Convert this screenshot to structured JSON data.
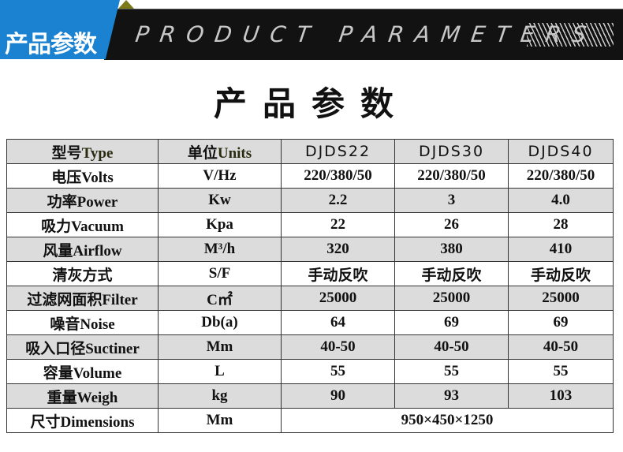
{
  "banner": {
    "cn_title": "产品参数",
    "en_title": "PRODUCT PARAMETERS"
  },
  "title": "产品参数",
  "header": {
    "type_cn": "型号",
    "type_en": "Type",
    "units_cn": "单位",
    "units_en": "Units",
    "models": [
      "DJDS22",
      "DJDS30",
      "DJDS40"
    ]
  },
  "rows": [
    {
      "label": "电压Volts",
      "unit": "V/Hz",
      "values": [
        "220/380/50",
        "220/380/50",
        "220/380/50"
      ]
    },
    {
      "label": "功率Power",
      "unit": "Kw",
      "values": [
        "2.2",
        "3",
        "4.0"
      ]
    },
    {
      "label": "吸力Vacuum",
      "unit": "Kpa",
      "values": [
        "22",
        "26",
        "28"
      ]
    },
    {
      "label": "风量Airflow",
      "unit": "M³/h",
      "values": [
        "320",
        "380",
        "410"
      ]
    },
    {
      "label": "清灰方式",
      "unit": "S/F",
      "values": [
        "手动反吹",
        "手动反吹",
        "手动反吹"
      ]
    },
    {
      "label": "过滤网面积Filter",
      "unit": "C㎡",
      "values": [
        "25000",
        "25000",
        "25000"
      ]
    },
    {
      "label": "噪音Noise",
      "unit": "Db(a)",
      "values": [
        "64",
        "69",
        "69"
      ]
    },
    {
      "label": "吸入口径Suctiner",
      "unit": "Mm",
      "values": [
        "40-50",
        "40-50",
        "40-50"
      ]
    },
    {
      "label": "容量Volume",
      "unit": "L",
      "values": [
        "55",
        "55",
        "55"
      ]
    },
    {
      "label": "重量Weigh",
      "unit": "kg",
      "values": [
        "90",
        "93",
        "103"
      ]
    }
  ],
  "dimensions": {
    "label": "尺寸Dimensions",
    "unit": "Mm",
    "value": "950×450×1250"
  }
}
